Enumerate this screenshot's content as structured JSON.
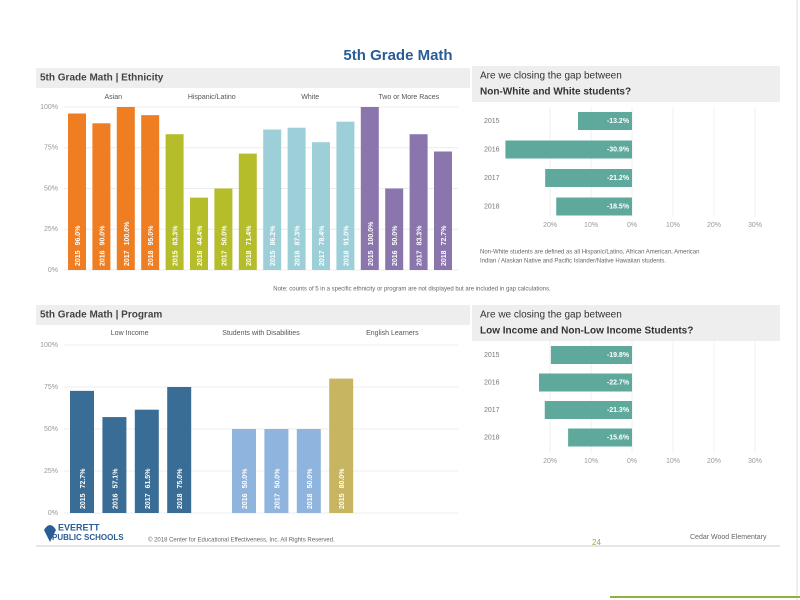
{
  "title": "5th Grade Math",
  "chart_data": [
    {
      "type": "bar",
      "title": "5th Grade Math | Ethnicity",
      "groups": [
        {
          "name": "Asian",
          "color": "#ef7d22",
          "categories": [
            "2015",
            "2016",
            "2017",
            "2018"
          ],
          "values": [
            96.0,
            90.0,
            100.0,
            95.0
          ],
          "value_labels": [
            "96.0%",
            "90.0%",
            "100.0%",
            "95.0%"
          ]
        },
        {
          "name": "Hispanic/Latino",
          "color": "#b5bd2b",
          "categories": [
            "2015",
            "2016",
            "2017",
            "2018"
          ],
          "values": [
            83.3,
            44.4,
            50.0,
            71.4
          ],
          "value_labels": [
            "83.3%",
            "44.4%",
            "50.0%",
            "71.4%"
          ]
        },
        {
          "name": "White",
          "color": "#9ccfd8",
          "categories": [
            "2015",
            "2016",
            "2017",
            "2018"
          ],
          "values": [
            86.2,
            87.3,
            78.4,
            91.0
          ],
          "value_labels": [
            "86.2%",
            "87.3%",
            "78.4%",
            "91.0%"
          ]
        },
        {
          "name": "Two or More Races",
          "color": "#8a75ad",
          "categories": [
            "2015",
            "2016",
            "2017",
            "2018"
          ],
          "values": [
            100.0,
            50.0,
            83.3,
            72.7
          ],
          "value_labels": [
            "100.0%",
            "50.0%",
            "83.3%",
            "72.7%"
          ]
        }
      ],
      "ylim": [
        0,
        100
      ],
      "yticks": [
        {
          "value": 0,
          "label": "0%"
        },
        {
          "value": 25,
          "label": "25%"
        },
        {
          "value": 50,
          "label": "50%"
        },
        {
          "value": 75,
          "label": "75%"
        },
        {
          "value": 100,
          "label": "100%"
        }
      ],
      "grid": true,
      "note": "Note: counts of 5 in a specific ethnicity or program are not displayed but are included in gap calculations."
    },
    {
      "type": "hbar",
      "title": [
        "Are we closing the gap between",
        "Non-White and White students?"
      ],
      "categories": [
        "2015",
        "2016",
        "2017",
        "2018"
      ],
      "values": [
        -13.2,
        -30.9,
        -21.2,
        -18.5
      ],
      "value_labels": [
        "-13.2%",
        "-30.9%",
        "-21.2%",
        "-18.5%"
      ],
      "color": "#5fa89c",
      "xlim": [
        -31,
        30
      ],
      "xticks": [
        {
          "value": -20,
          "label": "20%"
        },
        {
          "value": -10,
          "label": "10%"
        },
        {
          "value": 0,
          "label": "0%"
        },
        {
          "value": 10,
          "label": "10%"
        },
        {
          "value": 20,
          "label": "20%"
        },
        {
          "value": 30,
          "label": "30%"
        }
      ],
      "note": [
        "Non-White students are defined as all Hispanic/Latino, African American, American",
        "Indian / Alaskan Native and Pacific Islander/Native Hawaiian students."
      ]
    },
    {
      "type": "bar",
      "title": "5th Grade Math | Program",
      "groups": [
        {
          "name": "Low Income",
          "color": "#3a6d96",
          "categories": [
            "2015",
            "2016",
            "2017",
            "2018"
          ],
          "values": [
            72.7,
            57.1,
            61.5,
            75.0
          ],
          "value_labels": [
            "72.7%",
            "57.1%",
            "61.5%",
            "75.0%"
          ]
        },
        {
          "name": "Students with Disabilities",
          "color": "#8fb4dd",
          "categories": [
            "2016",
            "2017",
            "2018"
          ],
          "values": [
            50.0,
            50.0,
            50.0
          ],
          "value_labels": [
            "50.0%",
            "50.0%",
            "50.0%"
          ]
        },
        {
          "name": "English Learners",
          "color": "#c8b561",
          "categories": [
            "2015"
          ],
          "values": [
            80.0
          ],
          "value_labels": [
            "80.0%"
          ]
        }
      ],
      "ylim": [
        0,
        100
      ],
      "yticks": [
        {
          "value": 0,
          "label": "0%"
        },
        {
          "value": 25,
          "label": "25%"
        },
        {
          "value": 50,
          "label": "50%"
        },
        {
          "value": 75,
          "label": "75%"
        },
        {
          "value": 100,
          "label": "100%"
        }
      ],
      "grid": true
    },
    {
      "type": "hbar",
      "title": [
        "Are we closing the gap between",
        "Low Income and Non-Low Income Students?"
      ],
      "categories": [
        "2015",
        "2016",
        "2017",
        "2018"
      ],
      "values": [
        -19.8,
        -22.7,
        -21.3,
        -15.6
      ],
      "value_labels": [
        "-19.8%",
        "-22.7%",
        "-21.3%",
        "-15.6%"
      ],
      "color": "#5fa89c",
      "xlim": [
        -31,
        30
      ],
      "xticks": [
        {
          "value": -20,
          "label": "20%"
        },
        {
          "value": -10,
          "label": "10%"
        },
        {
          "value": 0,
          "label": "0%"
        },
        {
          "value": 10,
          "label": "10%"
        },
        {
          "value": 20,
          "label": "20%"
        },
        {
          "value": 30,
          "label": "30%"
        }
      ]
    }
  ],
  "footer": {
    "logo": [
      "EVERETT",
      "PUBLIC SCHOOLS"
    ],
    "copyright": "© 2018 Center for Educational Effectiveness, Inc. All Rights Reserved.",
    "page": "24",
    "school": "Cedar Wood Elementary"
  }
}
